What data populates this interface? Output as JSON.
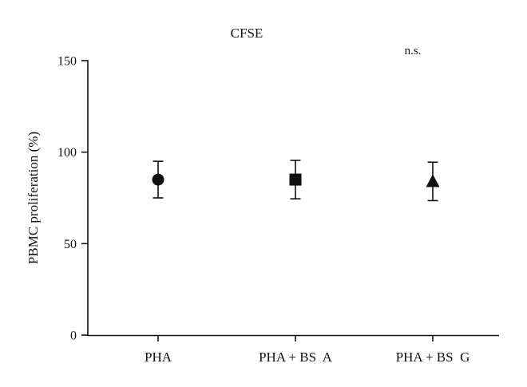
{
  "chart_data": {
    "type": "scatter",
    "title": "CFSE",
    "ylabel": "PBMC proliferation (%)",
    "xlabel": "",
    "ylim": [
      0,
      150
    ],
    "yticks": [
      0,
      50,
      100,
      150
    ],
    "grid": false,
    "categories": [
      "PHA",
      "PHA + BS  A",
      "PHA + BS  G"
    ],
    "values": [
      85,
      85,
      84
    ],
    "error": [
      10,
      10.5,
      10.5
    ],
    "markers": [
      "circle",
      "square",
      "triangle"
    ],
    "annotation": "n.s.",
    "annotation_category": "PHA + BS  G"
  }
}
